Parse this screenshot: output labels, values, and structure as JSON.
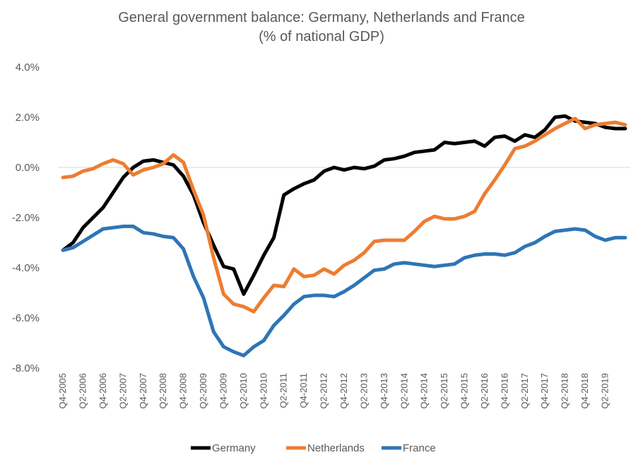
{
  "chart_data": {
    "type": "line",
    "title": "General government balance: Germany, Netherlands and France",
    "subtitle": "(% of national GDP)",
    "xlabel": "",
    "ylabel": "",
    "ylim": [
      -8.0,
      4.0
    ],
    "y_ticks": [
      "4.0%",
      "2.0%",
      "0.0%",
      "-2.0%",
      "-4.0%",
      "-6.0%",
      "-8.0%"
    ],
    "y_tick_values": [
      4,
      2,
      0,
      -2,
      -4,
      -6,
      -8
    ],
    "x_tick_labels": [
      "Q4-2005",
      "Q2-2006",
      "Q4-2006",
      "Q2-2007",
      "Q4-2007",
      "Q2-2008",
      "Q4-2008",
      "Q2-2009",
      "Q4-2009",
      "Q2-2010",
      "Q4-2010",
      "Q2-2011",
      "Q4-2011",
      "Q2-2012",
      "Q4-2012",
      "Q2-2013",
      "Q4-2013",
      "Q2-2014",
      "Q4-2014",
      "Q2-2015",
      "Q4-2015",
      "Q2-2016",
      "Q4-2016",
      "Q2-2017",
      "Q4-2017",
      "Q2-2018",
      "Q4-2018",
      "Q2-2019"
    ],
    "x": [
      "Q4-2005",
      "Q1-2006",
      "Q2-2006",
      "Q3-2006",
      "Q4-2006",
      "Q1-2007",
      "Q2-2007",
      "Q3-2007",
      "Q4-2007",
      "Q1-2008",
      "Q2-2008",
      "Q3-2008",
      "Q4-2008",
      "Q1-2009",
      "Q2-2009",
      "Q3-2009",
      "Q4-2009",
      "Q1-2010",
      "Q2-2010",
      "Q3-2010",
      "Q4-2010",
      "Q1-2011",
      "Q2-2011",
      "Q3-2011",
      "Q4-2011",
      "Q1-2012",
      "Q2-2012",
      "Q3-2012",
      "Q4-2012",
      "Q1-2013",
      "Q2-2013",
      "Q3-2013",
      "Q4-2013",
      "Q1-2014",
      "Q2-2014",
      "Q3-2014",
      "Q4-2014",
      "Q1-2015",
      "Q2-2015",
      "Q3-2015",
      "Q4-2015",
      "Q1-2016",
      "Q2-2016",
      "Q3-2016",
      "Q4-2016",
      "Q1-2017",
      "Q2-2017",
      "Q3-2017",
      "Q4-2017",
      "Q1-2018",
      "Q2-2018",
      "Q3-2018",
      "Q4-2018",
      "Q1-2019",
      "Q2-2019",
      "Q3-2019",
      "Q4-2019"
    ],
    "series": [
      {
        "name": "Germany",
        "color": "#000000",
        "values": [
          -3.3,
          -3.0,
          -2.4,
          -2.0,
          -1.6,
          -1.0,
          -0.4,
          0.0,
          0.25,
          0.3,
          0.2,
          0.1,
          -0.35,
          -1.1,
          -2.2,
          -3.1,
          -3.95,
          -4.05,
          -5.05,
          -4.3,
          -3.5,
          -2.8,
          -1.1,
          -0.85,
          -0.65,
          -0.5,
          -0.15,
          0.0,
          -0.1,
          0.0,
          -0.05,
          0.05,
          0.3,
          0.35,
          0.45,
          0.6,
          0.65,
          0.7,
          1.0,
          0.95,
          1.0,
          1.05,
          0.85,
          1.2,
          1.25,
          1.05,
          1.3,
          1.2,
          1.5,
          2.0,
          2.05,
          1.85,
          1.8,
          1.75,
          1.6,
          1.55,
          1.55
        ]
      },
      {
        "name": "Netherlands",
        "color": "#ed7d31",
        "values": [
          -0.4,
          -0.35,
          -0.15,
          -0.05,
          0.15,
          0.3,
          0.15,
          -0.3,
          -0.1,
          0.0,
          0.15,
          0.5,
          0.2,
          -0.9,
          -1.9,
          -3.6,
          -5.05,
          -5.45,
          -5.55,
          -5.75,
          -5.2,
          -4.7,
          -4.75,
          -4.05,
          -4.35,
          -4.3,
          -4.05,
          -4.25,
          -3.9,
          -3.7,
          -3.4,
          -2.95,
          -2.9,
          -2.9,
          -2.9,
          -2.55,
          -2.15,
          -1.95,
          -2.05,
          -2.05,
          -1.95,
          -1.75,
          -1.05,
          -0.5,
          0.1,
          0.75,
          0.85,
          1.05,
          1.3,
          1.55,
          1.75,
          1.95,
          1.55,
          1.7,
          1.75,
          1.8,
          1.7
        ]
      },
      {
        "name": "France",
        "color": "#2e75b6",
        "values": [
          -3.3,
          -3.2,
          -2.95,
          -2.7,
          -2.45,
          -2.4,
          -2.35,
          -2.35,
          -2.6,
          -2.65,
          -2.75,
          -2.8,
          -3.25,
          -4.35,
          -5.2,
          -6.55,
          -7.15,
          -7.35,
          -7.5,
          -7.15,
          -6.9,
          -6.3,
          -5.9,
          -5.45,
          -5.15,
          -5.1,
          -5.1,
          -5.15,
          -4.95,
          -4.7,
          -4.4,
          -4.1,
          -4.05,
          -3.85,
          -3.8,
          -3.85,
          -3.9,
          -3.95,
          -3.9,
          -3.85,
          -3.6,
          -3.5,
          -3.45,
          -3.45,
          -3.5,
          -3.4,
          -3.15,
          -3.0,
          -2.75,
          -2.55,
          -2.5,
          -2.45,
          -2.5,
          -2.75,
          -2.9,
          -2.8,
          -2.8
        ]
      }
    ],
    "legend_position": "bottom",
    "grid": "zero-line only"
  }
}
